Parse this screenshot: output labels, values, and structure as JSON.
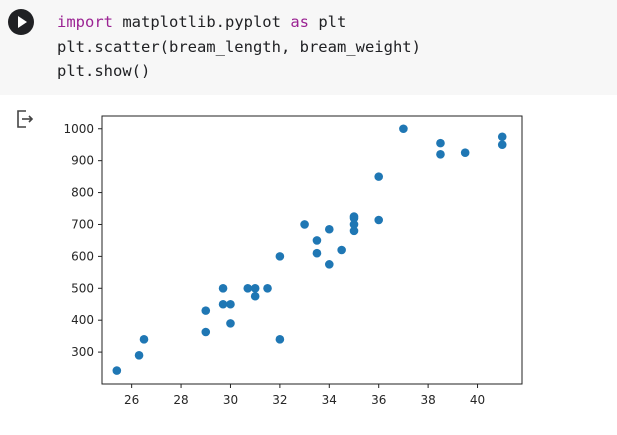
{
  "code_cell": {
    "lines": [
      [
        {
          "text": "import",
          "kind": "keyword"
        },
        {
          "text": " matplotlib.pyplot ",
          "kind": "plain"
        },
        {
          "text": "as",
          "kind": "keyword"
        },
        {
          "text": " plt",
          "kind": "plain"
        }
      ],
      [
        {
          "text": "plt.scatter(bream_length, bream_weight)",
          "kind": "plain"
        }
      ],
      [
        {
          "text": "plt.show()",
          "kind": "plain"
        }
      ]
    ],
    "run_icon": "play-icon"
  },
  "output": {
    "icon": "output-redirect-icon"
  },
  "colors": {
    "marker": "#1f77b4",
    "keyword": "#9b2393",
    "cell_background": "#f7f7f7"
  },
  "chart_data": {
    "type": "scatter",
    "title": "",
    "xlabel": "",
    "ylabel": "",
    "xlim": [
      24.8,
      41.8
    ],
    "ylim": [
      200,
      1040
    ],
    "xticks": [
      26,
      28,
      30,
      32,
      34,
      36,
      38,
      40
    ],
    "yticks": [
      300,
      400,
      500,
      600,
      700,
      800,
      900,
      1000
    ],
    "grid": false,
    "series": [
      {
        "x": [
          25.4,
          26.3,
          26.5,
          29.0,
          29.0,
          29.7,
          29.7,
          30.0,
          30.0,
          30.7,
          31.0,
          31.0,
          31.5,
          32.0,
          32.0,
          33.0,
          33.5,
          33.5,
          34.0,
          34.0,
          34.5,
          35.0,
          35.0,
          35.0,
          35.0,
          36.0,
          36.0,
          37.0,
          38.5,
          38.5,
          39.5,
          41.0,
          41.0
        ],
        "y": [
          242,
          290,
          340,
          363,
          430,
          450,
          500,
          390,
          450,
          500,
          475,
          500,
          500,
          340,
          600,
          700,
          610,
          650,
          575,
          685,
          620,
          680,
          700,
          725,
          720,
          714,
          850,
          1000,
          920,
          955,
          925,
          975,
          950
        ]
      }
    ]
  }
}
